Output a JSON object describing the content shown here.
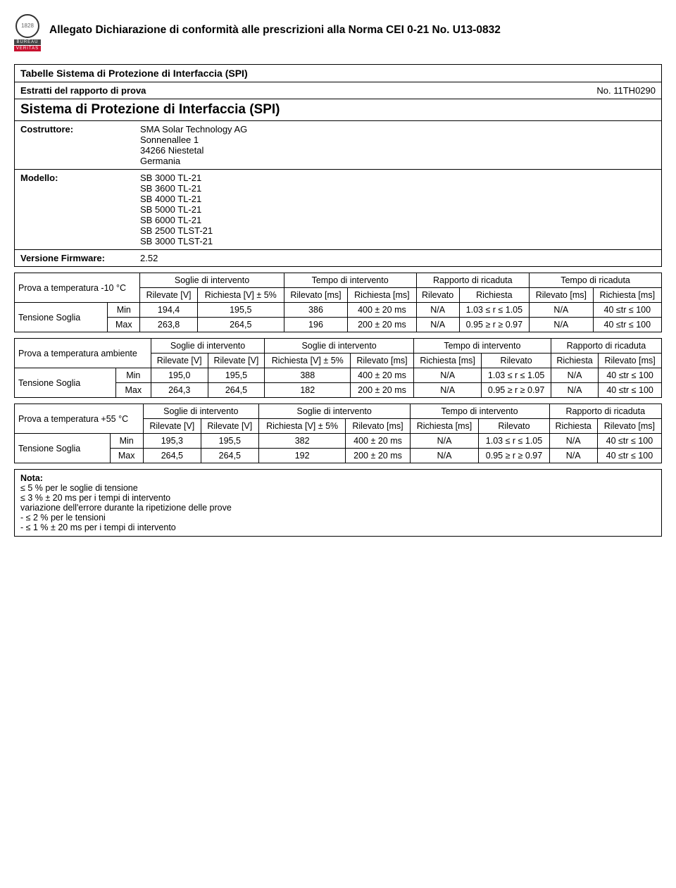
{
  "header": {
    "doc_title": "Allegato Dichiarazione di conformità alle prescrizioni alla Norma CEI 0-21 No. U13-0832",
    "logo_mid": "BUREAU",
    "logo_bot": "VERITAS"
  },
  "section": {
    "tabelle_title": "Tabelle Sistema di Protezione di Interfaccia (SPI)",
    "estratti_label": "Estratti del rapporto di prova",
    "estratti_no": "No. 11TH0290",
    "sistema_title": "Sistema di Protezione di Interfaccia (SPI)",
    "costruttore_label": "Costruttore:",
    "costruttore_lines": [
      "SMA Solar Technology AG",
      "Sonnenallee 1",
      "34266 Niestetal",
      "Germania"
    ],
    "modello_label": "Modello:",
    "modello_lines": [
      "SB 3000 TL-21",
      "SB 3600 TL-21",
      "SB 4000 TL-21",
      "SB 5000 TL-21",
      "SB 6000 TL-21",
      "SB 2500 TLST-21",
      "SB 3000 TLST-21"
    ],
    "firmware_label": "Versione Firmware:",
    "firmware_value": "2.52"
  },
  "t1": {
    "prova": "Prova a temperatura -10 °C",
    "h_soglie": "Soglie di intervento",
    "h_tempo": "Tempo di intervento",
    "h_rapporto": "Rapporto di ricaduta",
    "h_tempo_r": "Tempo di ricaduta",
    "sub_rilevate_v": "Rilevate [V]",
    "sub_richiesta_v5": "Richiesta [V] ± 5%",
    "sub_rilevato_ms": "Rilevato [ms]",
    "sub_richiesta_ms": "Richiesta [ms]",
    "sub_rilevato": "Rilevato",
    "sub_richiesta": "Richiesta",
    "tensione": "Tensione Soglia",
    "min": "Min",
    "max": "Max",
    "r1": [
      "194,4",
      "195,5",
      "386",
      "400 ± 20 ms",
      "N/A",
      "1.03 ≤ r ≤ 1.05",
      "N/A",
      "40 ≤tr ≤ 100"
    ],
    "r2": [
      "263,8",
      "264,5",
      "196",
      "200 ± 20 ms",
      "N/A",
      "0.95 ≥ r ≥ 0.97",
      "N/A",
      "40 ≤tr ≤ 100"
    ]
  },
  "t2": {
    "prova": "Prova a temperatura ambiente",
    "h_soglie1": "Soglie di intervento",
    "h_soglie2": "Soglie di intervento",
    "h_tempo": "Tempo di intervento",
    "h_rapporto": "Rapporto di ricaduta",
    "sub_rilevate_v": "Rilevate [V]",
    "sub_richiesta_v5": "Richiesta [V] ± 5%",
    "sub_rilevato_ms": "Rilevato [ms]",
    "sub_richiesta_ms": "Richiesta [ms]",
    "sub_rilevato": "Rilevato",
    "sub_richiesta": "Richiesta",
    "tensione": "Tensione Soglia",
    "min": "Min",
    "max": "Max",
    "r1": [
      "195,0",
      "195,5",
      "388",
      "400 ± 20 ms",
      "N/A",
      "1.03 ≤ r ≤ 1.05",
      "N/A",
      "40 ≤tr ≤ 100"
    ],
    "r2": [
      "264,3",
      "264,5",
      "182",
      "200 ± 20 ms",
      "N/A",
      "0.95 ≥ r ≥ 0.97",
      "N/A",
      "40 ≤tr ≤ 100"
    ]
  },
  "t3": {
    "prova": "Prova a temperatura +55 °C",
    "h_soglie1": "Soglie di intervento",
    "h_soglie2": "Soglie di intervento",
    "h_tempo": "Tempo di intervento",
    "h_rapporto": "Rapporto di ricaduta",
    "sub_rilevate_v": "Rilevate [V]",
    "sub_richiesta_v5": "Richiesta [V] ± 5%",
    "sub_rilevato_ms": "Rilevato [ms]",
    "sub_richiesta_ms": "Richiesta [ms]",
    "sub_rilevato": "Rilevato",
    "sub_richiesta": "Richiesta",
    "tensione": "Tensione Soglia",
    "min": "Min",
    "max": "Max",
    "r1": [
      "195,3",
      "195,5",
      "382",
      "400 ± 20 ms",
      "N/A",
      "1.03 ≤ r ≤ 1.05",
      "N/A",
      "40 ≤tr ≤ 100"
    ],
    "r2": [
      "264,5",
      "264,5",
      "192",
      "200 ± 20 ms",
      "N/A",
      "0.95 ≥ r ≥ 0.97",
      "N/A",
      "40 ≤tr ≤ 100"
    ]
  },
  "nota": {
    "title": "Nota:",
    "lines": [
      "≤ 5 % per le soglie di tensione",
      "≤ 3 % ± 20 ms per i tempi di intervento",
      "variazione dell'errore durante la ripetizione delle prove",
      "-    ≤ 2 % per le tensioni",
      "-    ≤ 1 % ± 20 ms per i tempi di intervento"
    ]
  }
}
